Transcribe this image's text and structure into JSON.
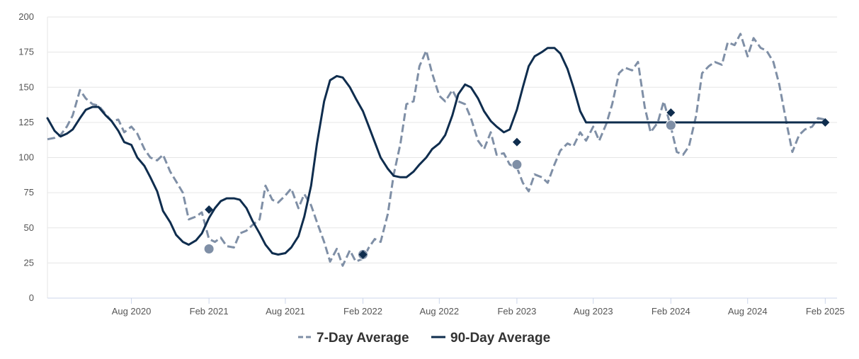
{
  "chart_data": {
    "type": "line",
    "title": "",
    "xlabel": "",
    "ylabel": "",
    "ylim": [
      0,
      200
    ],
    "yticks": [
      0,
      25,
      50,
      75,
      100,
      125,
      150,
      175,
      200
    ],
    "x_range": [
      "2020-01-15",
      "2025-02-29"
    ],
    "xtick_labels": [
      {
        "label": "Aug 2020",
        "date": "2020-08-01"
      },
      {
        "label": "Feb 2021",
        "date": "2021-02-01"
      },
      {
        "label": "Aug 2021",
        "date": "2021-08-01"
      },
      {
        "label": "Feb 2022",
        "date": "2022-02-01"
      },
      {
        "label": "Aug 2022",
        "date": "2022-08-01"
      },
      {
        "label": "Feb 2023",
        "date": "2023-02-01"
      },
      {
        "label": "Aug 2023",
        "date": "2023-08-01"
      },
      {
        "label": "Feb 2024",
        "date": "2024-02-01"
      },
      {
        "label": "Aug 2024",
        "date": "2024-08-01"
      },
      {
        "label": "Feb 2025",
        "date": "2025-02-01"
      }
    ],
    "legend": {
      "position": "bottom-center"
    },
    "series": [
      {
        "name": "7-Day Average",
        "style": "dashed",
        "color": "#7f8fa6",
        "points": [
          [
            "2020-01-15",
            113
          ],
          [
            "2020-02-01",
            114
          ],
          [
            "2020-02-15",
            116
          ],
          [
            "2020-03-01",
            122
          ],
          [
            "2020-03-15",
            130
          ],
          [
            "2020-04-01",
            148
          ],
          [
            "2020-04-15",
            142
          ],
          [
            "2020-05-01",
            138
          ],
          [
            "2020-05-15",
            137
          ],
          [
            "2020-06-01",
            131
          ],
          [
            "2020-06-15",
            126
          ],
          [
            "2020-07-01",
            127
          ],
          [
            "2020-07-15",
            118
          ],
          [
            "2020-08-01",
            122
          ],
          [
            "2020-08-15",
            117
          ],
          [
            "2020-09-01",
            106
          ],
          [
            "2020-09-15",
            100
          ],
          [
            "2020-10-01",
            98
          ],
          [
            "2020-10-15",
            102
          ],
          [
            "2020-11-01",
            90
          ],
          [
            "2020-11-15",
            83
          ],
          [
            "2020-12-01",
            75
          ],
          [
            "2020-12-15",
            56
          ],
          [
            "2021-01-01",
            58
          ],
          [
            "2021-01-15",
            61
          ],
          [
            "2021-02-01",
            42
          ],
          [
            "2021-02-15",
            40
          ],
          [
            "2021-03-01",
            43
          ],
          [
            "2021-03-15",
            37
          ],
          [
            "2021-04-01",
            36
          ],
          [
            "2021-04-15",
            46
          ],
          [
            "2021-05-01",
            48
          ],
          [
            "2021-05-15",
            52
          ],
          [
            "2021-06-01",
            56
          ],
          [
            "2021-06-15",
            80
          ],
          [
            "2021-07-01",
            70
          ],
          [
            "2021-07-15",
            68
          ],
          [
            "2021-08-01",
            73
          ],
          [
            "2021-08-15",
            78
          ],
          [
            "2021-09-01",
            64
          ],
          [
            "2021-09-15",
            74
          ],
          [
            "2021-10-01",
            66
          ],
          [
            "2021-10-15",
            54
          ],
          [
            "2021-11-01",
            40
          ],
          [
            "2021-11-15",
            26
          ],
          [
            "2021-12-01",
            35
          ],
          [
            "2021-12-15",
            23
          ],
          [
            "2022-01-01",
            34
          ],
          [
            "2022-01-15",
            26
          ],
          [
            "2022-02-01",
            28
          ],
          [
            "2022-02-15",
            36
          ],
          [
            "2022-03-01",
            42
          ],
          [
            "2022-03-15",
            40
          ],
          [
            "2022-04-01",
            60
          ],
          [
            "2022-04-15",
            88
          ],
          [
            "2022-05-01",
            110
          ],
          [
            "2022-05-15",
            138
          ],
          [
            "2022-06-01",
            140
          ],
          [
            "2022-06-15",
            165
          ],
          [
            "2022-07-01",
            176
          ],
          [
            "2022-07-15",
            160
          ],
          [
            "2022-08-01",
            144
          ],
          [
            "2022-08-15",
            140
          ],
          [
            "2022-09-01",
            148
          ],
          [
            "2022-09-15",
            140
          ],
          [
            "2022-10-01",
            138
          ],
          [
            "2022-10-15",
            128
          ],
          [
            "2022-11-01",
            112
          ],
          [
            "2022-11-15",
            106
          ],
          [
            "2022-12-01",
            118
          ],
          [
            "2022-12-15",
            102
          ],
          [
            "2023-01-01",
            103
          ],
          [
            "2023-01-15",
            95
          ],
          [
            "2023-02-01",
            93
          ],
          [
            "2023-02-15",
            82
          ],
          [
            "2023-03-01",
            76
          ],
          [
            "2023-03-15",
            88
          ],
          [
            "2023-04-01",
            86
          ],
          [
            "2023-04-15",
            82
          ],
          [
            "2023-05-01",
            95
          ],
          [
            "2023-05-15",
            105
          ],
          [
            "2023-06-01",
            110
          ],
          [
            "2023-06-15",
            108
          ],
          [
            "2023-07-01",
            118
          ],
          [
            "2023-07-15",
            112
          ],
          [
            "2023-08-01",
            122
          ],
          [
            "2023-08-15",
            112
          ],
          [
            "2023-09-01",
            124
          ],
          [
            "2023-09-15",
            138
          ],
          [
            "2023-10-01",
            160
          ],
          [
            "2023-10-15",
            164
          ],
          [
            "2023-11-01",
            162
          ],
          [
            "2023-11-15",
            168
          ],
          [
            "2023-12-01",
            136
          ],
          [
            "2023-12-15",
            118
          ],
          [
            "2024-01-01",
            125
          ],
          [
            "2024-01-15",
            140
          ],
          [
            "2024-02-01",
            122
          ],
          [
            "2024-02-15",
            104
          ],
          [
            "2024-03-01",
            102
          ],
          [
            "2024-03-15",
            108
          ],
          [
            "2024-04-01",
            130
          ],
          [
            "2024-04-15",
            160
          ],
          [
            "2024-05-01",
            165
          ],
          [
            "2024-05-15",
            168
          ],
          [
            "2024-06-01",
            166
          ],
          [
            "2024-06-15",
            182
          ],
          [
            "2024-07-01",
            180
          ],
          [
            "2024-07-15",
            188
          ],
          [
            "2024-08-01",
            172
          ],
          [
            "2024-08-15",
            185
          ],
          [
            "2024-09-01",
            178
          ],
          [
            "2024-09-15",
            176
          ],
          [
            "2024-10-01",
            168
          ],
          [
            "2024-10-15",
            152
          ],
          [
            "2024-11-01",
            125
          ],
          [
            "2024-11-15",
            104
          ],
          [
            "2024-12-01",
            116
          ],
          [
            "2024-12-15",
            120
          ],
          [
            "2025-01-01",
            122
          ],
          [
            "2025-01-15",
            128
          ],
          [
            "2025-02-01",
            127
          ]
        ]
      },
      {
        "name": "90-Day Average",
        "style": "solid",
        "color": "#0f2d4e",
        "points": [
          [
            "2020-01-15",
            128
          ],
          [
            "2020-02-01",
            119
          ],
          [
            "2020-02-15",
            115
          ],
          [
            "2020-03-01",
            117
          ],
          [
            "2020-03-15",
            120
          ],
          [
            "2020-04-01",
            128
          ],
          [
            "2020-04-15",
            134
          ],
          [
            "2020-05-01",
            136
          ],
          [
            "2020-05-15",
            136
          ],
          [
            "2020-06-01",
            130
          ],
          [
            "2020-06-15",
            126
          ],
          [
            "2020-07-01",
            119
          ],
          [
            "2020-07-15",
            111
          ],
          [
            "2020-08-01",
            109
          ],
          [
            "2020-08-15",
            100
          ],
          [
            "2020-09-01",
            94
          ],
          [
            "2020-09-15",
            86
          ],
          [
            "2020-10-01",
            76
          ],
          [
            "2020-10-15",
            62
          ],
          [
            "2020-11-01",
            54
          ],
          [
            "2020-11-15",
            45
          ],
          [
            "2020-12-01",
            40
          ],
          [
            "2020-12-15",
            38
          ],
          [
            "2021-01-01",
            41
          ],
          [
            "2021-01-15",
            46
          ],
          [
            "2021-02-01",
            57
          ],
          [
            "2021-02-15",
            64
          ],
          [
            "2021-03-01",
            69
          ],
          [
            "2021-03-15",
            71
          ],
          [
            "2021-04-01",
            71
          ],
          [
            "2021-04-15",
            70
          ],
          [
            "2021-05-01",
            64
          ],
          [
            "2021-05-15",
            55
          ],
          [
            "2021-06-01",
            46
          ],
          [
            "2021-06-15",
            38
          ],
          [
            "2021-07-01",
            32
          ],
          [
            "2021-07-15",
            31
          ],
          [
            "2021-08-01",
            32
          ],
          [
            "2021-08-15",
            36
          ],
          [
            "2021-09-01",
            44
          ],
          [
            "2021-09-15",
            58
          ],
          [
            "2021-10-01",
            80
          ],
          [
            "2021-10-15",
            110
          ],
          [
            "2021-11-01",
            140
          ],
          [
            "2021-11-15",
            155
          ],
          [
            "2021-12-01",
            158
          ],
          [
            "2021-12-15",
            157
          ],
          [
            "2022-01-01",
            150
          ],
          [
            "2022-01-15",
            142
          ],
          [
            "2022-02-01",
            133
          ],
          [
            "2022-02-15",
            122
          ],
          [
            "2022-03-01",
            111
          ],
          [
            "2022-03-15",
            100
          ],
          [
            "2022-04-01",
            92
          ],
          [
            "2022-04-15",
            87
          ],
          [
            "2022-05-01",
            86
          ],
          [
            "2022-05-15",
            86
          ],
          [
            "2022-06-01",
            90
          ],
          [
            "2022-06-15",
            95
          ],
          [
            "2022-07-01",
            100
          ],
          [
            "2022-07-15",
            106
          ],
          [
            "2022-08-01",
            110
          ],
          [
            "2022-08-15",
            116
          ],
          [
            "2022-09-01",
            130
          ],
          [
            "2022-09-15",
            145
          ],
          [
            "2022-10-01",
            152
          ],
          [
            "2022-10-15",
            150
          ],
          [
            "2022-11-01",
            142
          ],
          [
            "2022-11-15",
            133
          ],
          [
            "2022-12-01",
            126
          ],
          [
            "2022-12-15",
            122
          ],
          [
            "2023-01-01",
            118
          ],
          [
            "2023-01-15",
            120
          ],
          [
            "2023-02-01",
            134
          ],
          [
            "2023-02-15",
            150
          ],
          [
            "2023-03-01",
            165
          ],
          [
            "2023-03-15",
            172
          ],
          [
            "2023-04-01",
            175
          ],
          [
            "2023-04-15",
            178
          ],
          [
            "2023-05-01",
            178
          ],
          [
            "2023-05-15",
            174
          ],
          [
            "2023-06-01",
            163
          ],
          [
            "2023-06-15",
            150
          ],
          [
            "2023-07-01",
            133
          ],
          [
            "2023-07-15",
            125
          ],
          [
            "2023-08-01",
            125
          ],
          [
            "2023-08-15",
            125
          ],
          [
            "2023-09-01",
            125
          ],
          [
            "2023-09-15",
            125
          ],
          [
            "2023-10-01",
            125
          ],
          [
            "2023-10-15",
            125
          ],
          [
            "2023-11-01",
            125
          ],
          [
            "2023-11-15",
            125
          ],
          [
            "2023-12-01",
            125
          ],
          [
            "2023-12-15",
            125
          ],
          [
            "2024-01-01",
            125
          ],
          [
            "2024-01-15",
            125
          ],
          [
            "2024-02-01",
            125
          ],
          [
            "2024-02-15",
            125
          ],
          [
            "2024-03-01",
            125
          ],
          [
            "2024-03-15",
            125
          ],
          [
            "2024-04-01",
            125
          ],
          [
            "2024-04-15",
            125
          ],
          [
            "2024-05-01",
            125
          ],
          [
            "2024-05-15",
            125
          ],
          [
            "2024-06-01",
            125
          ],
          [
            "2024-06-15",
            125
          ],
          [
            "2024-07-01",
            125
          ],
          [
            "2024-07-15",
            125
          ],
          [
            "2024-08-01",
            125
          ],
          [
            "2024-08-15",
            125
          ],
          [
            "2024-09-01",
            125
          ],
          [
            "2024-09-15",
            125
          ],
          [
            "2024-10-01",
            125
          ],
          [
            "2024-10-15",
            125
          ],
          [
            "2024-11-01",
            125
          ],
          [
            "2024-11-15",
            125
          ],
          [
            "2024-12-01",
            125
          ],
          [
            "2024-12-15",
            125
          ],
          [
            "2025-01-01",
            125
          ],
          [
            "2025-01-15",
            125
          ],
          [
            "2025-02-01",
            125
          ]
        ]
      }
    ],
    "markers": {
      "circles": [
        [
          "2021-02-01",
          35
        ],
        [
          "2022-02-01",
          31
        ],
        [
          "2023-02-01",
          95
        ],
        [
          "2024-02-01",
          123
        ]
      ],
      "diamonds": [
        [
          "2021-02-01",
          63
        ],
        [
          "2022-02-01",
          31
        ],
        [
          "2023-02-01",
          111
        ],
        [
          "2024-02-01",
          132
        ],
        [
          "2025-02-01",
          125
        ]
      ]
    }
  }
}
